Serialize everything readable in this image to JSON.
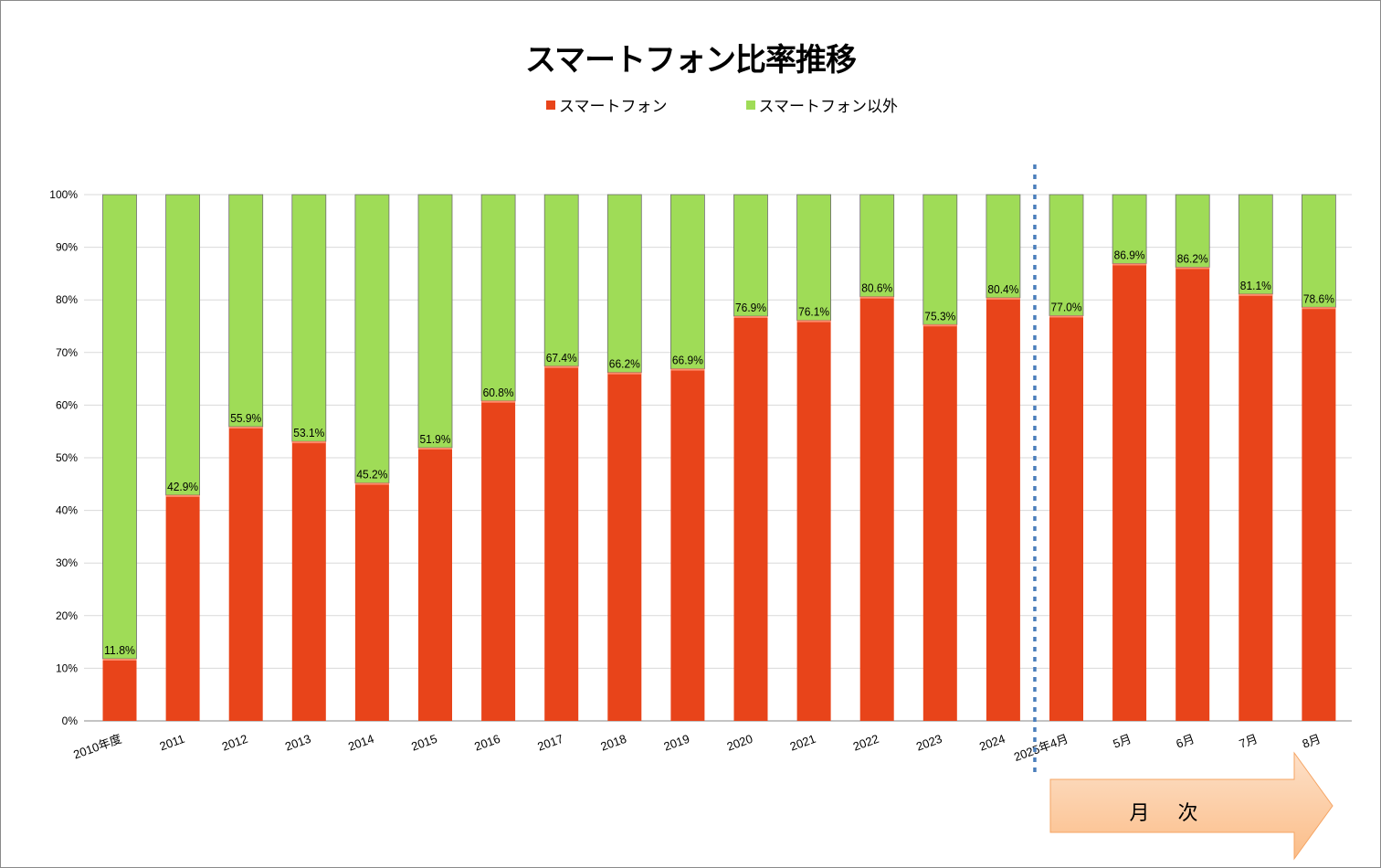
{
  "chart_data": {
    "type": "bar",
    "stacked": true,
    "percent_stacked": true,
    "title": "スマートフォン比率推移",
    "categories": [
      "2010年度",
      "2011",
      "2012",
      "2013",
      "2014",
      "2015",
      "2016",
      "2017",
      "2018",
      "2019",
      "2020",
      "2021",
      "2022",
      "2023",
      "2024",
      "2025年4月",
      "5月",
      "6月",
      "7月",
      "8月"
    ],
    "series": [
      {
        "name": "スマートフォン",
        "color": "#e8441a",
        "values": [
          11.8,
          42.9,
          55.9,
          53.1,
          45.2,
          51.9,
          60.8,
          67.4,
          66.2,
          66.9,
          76.9,
          76.1,
          80.6,
          75.3,
          80.4,
          77.0,
          86.9,
          86.2,
          81.1,
          78.6
        ]
      },
      {
        "name": "スマートフォン以外",
        "color": "#9fdc57",
        "values": [
          88.2,
          57.1,
          44.1,
          46.9,
          54.8,
          48.1,
          39.2,
          32.6,
          33.8,
          33.1,
          23.1,
          23.9,
          19.4,
          24.7,
          19.6,
          23.0,
          13.1,
          13.8,
          18.9,
          21.4
        ]
      }
    ],
    "data_labels": [
      "11.8%",
      "42.9%",
      "55.9%",
      "53.1%",
      "45.2%",
      "51.9%",
      "60.8%",
      "67.4%",
      "66.2%",
      "66.9%",
      "76.9%",
      "76.1%",
      "80.6%",
      "75.3%",
      "80.4%",
      "77.0%",
      "86.9%",
      "86.2%",
      "81.1%",
      "78.6%"
    ],
    "yticks": [
      "0%",
      "10%",
      "20%",
      "30%",
      "40%",
      "50%",
      "60%",
      "70%",
      "80%",
      "90%",
      "100%"
    ],
    "ylim": [
      0,
      100
    ],
    "grid": true,
    "legend": "top",
    "annotation": {
      "text": "月 次",
      "divider_after": "2024",
      "divider_color": "#4a7ebb",
      "arrow_color": "#fbc89a"
    }
  }
}
